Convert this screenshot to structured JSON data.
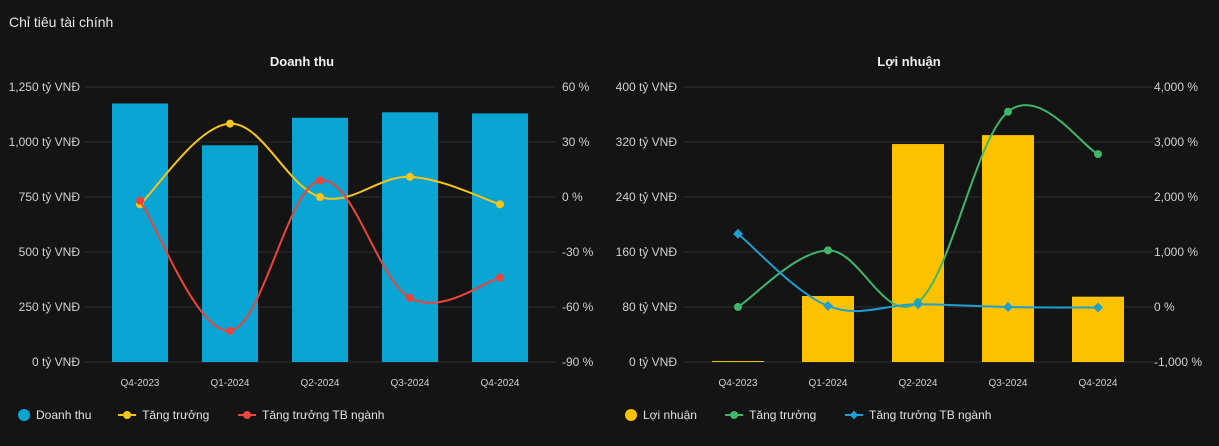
{
  "page": {
    "title": "Chỉ tiêu tài chính"
  },
  "chart_data": [
    {
      "type": "bar",
      "title": "Doanh thu",
      "categories": [
        "Q4-2023",
        "Q1-2024",
        "Q2-2024",
        "Q3-2024",
        "Q4-2024"
      ],
      "left_axis": {
        "ticks": [
          0,
          250,
          500,
          750,
          1000,
          1250
        ],
        "tick_labels": [
          "0 tỷ VNĐ",
          "250 tỷ VNĐ",
          "500 tỷ VNĐ",
          "750 tỷ VNĐ",
          "1,000 tỷ VNĐ",
          "1,250 tỷ VNĐ"
        ],
        "range": [
          0,
          1250
        ]
      },
      "right_axis": {
        "ticks": [
          -90,
          -60,
          -30,
          0,
          30,
          60
        ],
        "tick_labels": [
          "-90 %",
          "-60 %",
          "-30 %",
          "0 %",
          "30 %",
          "60 %"
        ],
        "range": [
          -90,
          60
        ]
      },
      "series": [
        {
          "name": "Doanh thu",
          "kind": "bar",
          "axis": "left",
          "color": "#0ba5d3",
          "values": [
            1175,
            985,
            1110,
            1135,
            1130
          ]
        },
        {
          "name": "Tăng trưởng",
          "kind": "line",
          "axis": "right",
          "color": "#f5c518",
          "values": [
            -4,
            40,
            0,
            11,
            -4
          ]
        },
        {
          "name": "Tăng trưởng TB ngành",
          "kind": "line",
          "axis": "right",
          "color": "#e8453c",
          "values": [
            -2,
            -73,
            9,
            -55,
            -44
          ]
        }
      ],
      "grid": true,
      "legend_position": "bottom-left"
    },
    {
      "type": "bar",
      "title": "Lợi nhuận",
      "categories": [
        "Q4-2023",
        "Q1-2024",
        "Q2-2024",
        "Q3-2024",
        "Q4-2024"
      ],
      "left_axis": {
        "ticks": [
          0,
          80,
          160,
          240,
          320,
          400
        ],
        "tick_labels": [
          "0 tỷ VNĐ",
          "80 tỷ VNĐ",
          "160 tỷ VNĐ",
          "240 tỷ VNĐ",
          "320 tỷ VNĐ",
          "400 tỷ VNĐ"
        ],
        "range": [
          0,
          400
        ]
      },
      "right_axis": {
        "ticks": [
          -1000,
          0,
          1000,
          2000,
          3000,
          4000
        ],
        "tick_labels": [
          "-1,000 %",
          "0 %",
          "1,000 %",
          "2,000 %",
          "3,000 %",
          "4,000 %"
        ],
        "range": [
          -1000,
          4000
        ]
      },
      "series": [
        {
          "name": "Lợi nhuận",
          "kind": "bar",
          "axis": "left",
          "color": "#fcc200",
          "values": [
            1,
            96,
            317,
            330,
            95
          ]
        },
        {
          "name": "Tăng trưởng",
          "kind": "line",
          "axis": "right",
          "color": "#3fb56b",
          "values": [
            0,
            1030,
            90,
            3550,
            2780
          ]
        },
        {
          "name": "Tăng trưởng TB ngành",
          "kind": "line",
          "axis": "right",
          "color": "#1f9fd1",
          "values": [
            1330,
            20,
            50,
            0,
            -10
          ]
        }
      ],
      "grid": true,
      "legend_position": "bottom-left"
    }
  ]
}
